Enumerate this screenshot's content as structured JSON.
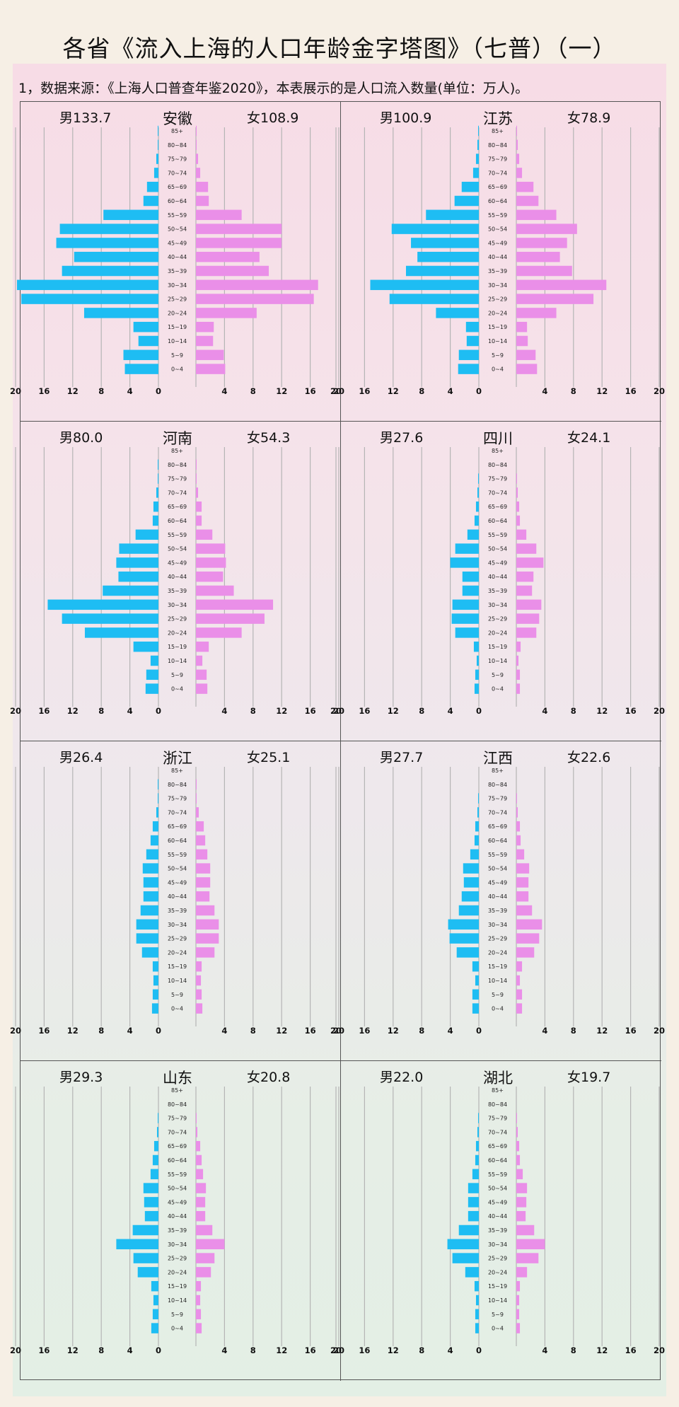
{
  "title": "各省《流入上海的人口年龄金字塔图》（七普）（一）",
  "source_note": "1，数据来源：《上海人口普查年鉴2020》，本表展示的是人口流入数量(单位：万人)。",
  "colors": {
    "male": "#1ebdf3",
    "female": "#ea8fe8",
    "grid": "#b5b5b5"
  },
  "chart_data": [
    {
      "type": "bar",
      "province": "安徽",
      "male_label": "男133.7",
      "female_label": "女108.9",
      "categories": [
        "0~4",
        "5~9",
        "10~14",
        "15~19",
        "20~24",
        "25~29",
        "30~34",
        "35~39",
        "40~44",
        "45~49",
        "50~54",
        "55~59",
        "60~64",
        "65~69",
        "70~74",
        "75~79",
        "80~84",
        "85+"
      ],
      "series": [
        {
          "name": "男",
          "values": [
            4.7,
            4.9,
            2.8,
            3.5,
            10.4,
            19.2,
            19.8,
            13.5,
            11.8,
            14.3,
            13.8,
            7.7,
            2.1,
            1.6,
            0.6,
            0.3,
            0.1,
            0.1
          ]
        },
        {
          "name": "女",
          "values": [
            4.1,
            3.9,
            2.4,
            2.5,
            8.5,
            16.5,
            17.1,
            10.2,
            8.9,
            12.0,
            12.0,
            6.4,
            1.8,
            1.7,
            0.6,
            0.3,
            0.1,
            0.1
          ]
        }
      ],
      "xticks": [
        20,
        16,
        12,
        8,
        4,
        0,
        4,
        8,
        12,
        16,
        20
      ],
      "xlim": [
        0,
        20
      ]
    },
    {
      "type": "bar",
      "province": "江苏",
      "male_label": "男100.9",
      "female_label": "女78.9",
      "categories": [
        "0~4",
        "5~9",
        "10~14",
        "15~19",
        "20~24",
        "25~29",
        "30~34",
        "35~39",
        "40~44",
        "45~49",
        "50~54",
        "55~59",
        "60~64",
        "65~69",
        "70~74",
        "75~79",
        "80~84",
        "85+"
      ],
      "series": [
        {
          "name": "男",
          "values": [
            2.9,
            2.8,
            1.7,
            1.8,
            6.0,
            12.5,
            15.2,
            10.2,
            8.6,
            9.5,
            12.2,
            7.4,
            3.4,
            2.4,
            0.8,
            0.4,
            0.2,
            0.1
          ]
        },
        {
          "name": "女",
          "values": [
            2.9,
            2.7,
            1.6,
            1.5,
            5.6,
            10.8,
            12.6,
            7.8,
            6.1,
            7.1,
            8.5,
            5.6,
            3.1,
            2.4,
            0.8,
            0.4,
            0.2,
            0.1
          ]
        }
      ],
      "xticks": [
        20,
        16,
        12,
        8,
        4,
        0,
        4,
        8,
        12,
        16,
        20
      ],
      "xlim": [
        0,
        20
      ]
    },
    {
      "type": "bar",
      "province": "河南",
      "male_label": "男80.0",
      "female_label": "女54.3",
      "categories": [
        "0~4",
        "5~9",
        "10~14",
        "15~19",
        "20~24",
        "25~29",
        "30~34",
        "35~39",
        "40~44",
        "45~49",
        "50~54",
        "55~59",
        "60~64",
        "65~69",
        "70~74",
        "75~79",
        "80~84",
        "85+"
      ],
      "series": [
        {
          "name": "男",
          "values": [
            1.8,
            1.7,
            1.1,
            3.5,
            10.3,
            13.5,
            15.5,
            7.8,
            5.6,
            5.9,
            5.5,
            3.2,
            0.8,
            0.7,
            0.3,
            0.1,
            0.1,
            0.0
          ]
        },
        {
          "name": "女",
          "values": [
            1.6,
            1.5,
            0.9,
            1.8,
            6.4,
            9.6,
            10.8,
            5.3,
            3.8,
            4.2,
            4.1,
            2.3,
            0.8,
            0.8,
            0.3,
            0.1,
            0.1,
            0.0
          ]
        }
      ],
      "xticks": [
        20,
        16,
        12,
        8,
        4,
        0,
        4,
        8,
        12,
        16,
        20
      ],
      "xlim": [
        0,
        20
      ]
    },
    {
      "type": "bar",
      "province": "四川",
      "male_label": "男27.6",
      "female_label": "女24.1",
      "categories": [
        "0~4",
        "5~9",
        "10~14",
        "15~19",
        "20~24",
        "25~29",
        "30~34",
        "35~39",
        "40~44",
        "45~49",
        "50~54",
        "55~59",
        "60~64",
        "65~69",
        "70~74",
        "75~79",
        "80~84",
        "85+"
      ],
      "series": [
        {
          "name": "男",
          "values": [
            0.6,
            0.5,
            0.3,
            0.7,
            3.3,
            3.8,
            3.7,
            2.3,
            2.3,
            4.0,
            3.3,
            1.6,
            0.6,
            0.4,
            0.2,
            0.1,
            0.0,
            0.0
          ]
        },
        {
          "name": "女",
          "values": [
            0.5,
            0.5,
            0.3,
            0.6,
            2.8,
            3.2,
            3.5,
            2.2,
            2.4,
            3.8,
            2.8,
            1.4,
            0.5,
            0.4,
            0.2,
            0.1,
            0.0,
            0.0
          ]
        }
      ],
      "xticks": [
        20,
        16,
        12,
        8,
        4,
        0,
        4,
        8,
        12,
        16,
        20
      ],
      "xlim": [
        0,
        20
      ]
    },
    {
      "type": "bar",
      "province": "浙江",
      "male_label": "男26.4",
      "female_label": "女25.1",
      "categories": [
        "0~4",
        "5~9",
        "10~14",
        "15~19",
        "20~24",
        "25~29",
        "30~34",
        "35~39",
        "40~44",
        "45~49",
        "50~54",
        "55~59",
        "60~64",
        "65~69",
        "70~74",
        "75~79",
        "80~84",
        "85+"
      ],
      "series": [
        {
          "name": "男",
          "values": [
            0.9,
            0.8,
            0.7,
            0.8,
            2.3,
            3.1,
            3.1,
            2.5,
            2.1,
            2.1,
            2.2,
            1.7,
            1.1,
            0.8,
            0.3,
            0.1,
            0.1,
            0.0
          ]
        },
        {
          "name": "女",
          "values": [
            0.9,
            0.8,
            0.7,
            0.8,
            2.6,
            3.2,
            3.2,
            2.6,
            1.9,
            2.0,
            2.0,
            1.6,
            1.3,
            1.1,
            0.4,
            0.1,
            0.1,
            0.0
          ]
        }
      ],
      "xticks": [
        20,
        16,
        12,
        8,
        4,
        0,
        4,
        8,
        12,
        16,
        20
      ],
      "xlim": [
        0,
        20
      ]
    },
    {
      "type": "bar",
      "province": "江西",
      "male_label": "男27.7",
      "female_label": "女22.6",
      "categories": [
        "0~4",
        "5~9",
        "10~14",
        "15~19",
        "20~24",
        "25~29",
        "30~34",
        "35~39",
        "40~44",
        "45~49",
        "50~54",
        "55~59",
        "60~64",
        "65~69",
        "70~74",
        "75~79",
        "80~84",
        "85+"
      ],
      "series": [
        {
          "name": "男",
          "values": [
            0.9,
            0.9,
            0.5,
            0.9,
            3.1,
            4.1,
            4.3,
            2.8,
            2.4,
            2.1,
            2.2,
            1.2,
            0.6,
            0.5,
            0.2,
            0.1,
            0.0,
            0.0
          ]
        },
        {
          "name": "女",
          "values": [
            0.8,
            0.8,
            0.5,
            0.8,
            2.5,
            3.2,
            3.6,
            2.2,
            1.7,
            1.7,
            1.8,
            1.1,
            0.6,
            0.5,
            0.2,
            0.1,
            0.0,
            0.0
          ]
        }
      ],
      "xticks": [
        20,
        16,
        12,
        8,
        4,
        0,
        4,
        8,
        12,
        16,
        20
      ],
      "xlim": [
        0,
        20
      ]
    },
    {
      "type": "bar",
      "province": "山东",
      "male_label": "男29.3",
      "female_label": "女20.8",
      "categories": [
        "0~4",
        "5~9",
        "10~14",
        "15~19",
        "20~24",
        "25~29",
        "30~34",
        "35~39",
        "40~44",
        "45~49",
        "50~54",
        "55~59",
        "60~64",
        "65~69",
        "70~74",
        "75~79",
        "80~84",
        "85+"
      ],
      "series": [
        {
          "name": "男",
          "values": [
            1.0,
            0.8,
            0.7,
            1.0,
            2.9,
            3.5,
            5.9,
            3.6,
            1.9,
            2.0,
            2.1,
            1.1,
            0.8,
            0.6,
            0.2,
            0.1,
            0.0,
            0.0
          ]
        },
        {
          "name": "女",
          "values": [
            0.8,
            0.7,
            0.6,
            0.7,
            2.1,
            2.6,
            4.0,
            2.3,
            1.3,
            1.3,
            1.4,
            1.0,
            0.8,
            0.6,
            0.2,
            0.1,
            0.0,
            0.0
          ]
        }
      ],
      "xticks": [
        20,
        16,
        12,
        8,
        4,
        0,
        4,
        8,
        12,
        16,
        20
      ],
      "xlim": [
        0,
        20
      ]
    },
    {
      "type": "bar",
      "province": "湖北",
      "male_label": "男22.0",
      "female_label": "女19.7",
      "categories": [
        "0~4",
        "5~9",
        "10~14",
        "15~19",
        "20~24",
        "25~29",
        "30~34",
        "35~39",
        "40~44",
        "45~49",
        "50~54",
        "55~59",
        "60~64",
        "65~69",
        "70~74",
        "75~79",
        "80~84",
        "85+"
      ],
      "series": [
        {
          "name": "男",
          "values": [
            0.5,
            0.5,
            0.4,
            0.6,
            1.9,
            3.7,
            4.4,
            2.8,
            1.5,
            1.5,
            1.5,
            0.9,
            0.5,
            0.4,
            0.2,
            0.1,
            0.0,
            0.0
          ]
        },
        {
          "name": "女",
          "values": [
            0.5,
            0.4,
            0.4,
            0.5,
            1.5,
            3.1,
            4.0,
            2.5,
            1.3,
            1.4,
            1.5,
            0.9,
            0.5,
            0.4,
            0.2,
            0.1,
            0.0,
            0.0
          ]
        }
      ],
      "xticks": [
        20,
        16,
        12,
        8,
        4,
        0,
        4,
        8,
        12,
        16,
        20
      ],
      "xlim": [
        0,
        20
      ]
    }
  ]
}
